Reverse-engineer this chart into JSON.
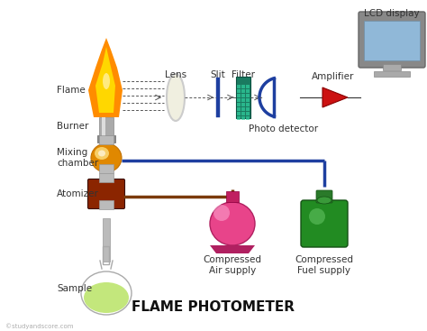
{
  "title": "FLAME PHOTOMETER",
  "title_fontsize": 11,
  "bg_color": "#ffffff",
  "watermark": "©studyandscore.com",
  "labels": {
    "flame": "Flame",
    "burner": "Burner",
    "mixing_chamber": "Mixing\nchamber",
    "atomizer": "Atomizer",
    "sample": "Sample",
    "lens": "Lens",
    "slit": "Slit",
    "filter": "Filter",
    "photo_detector": "Photo detector",
    "amplifier": "Amplifier",
    "lcd_display": "LCD display",
    "compressed_air": "Compressed\nAir supply",
    "compressed_fuel": "Compressed\nFuel supply"
  },
  "colors": {
    "flame_orange": "#FF8C00",
    "flame_yellow": "#FFD700",
    "burner_gray": "#A8A8A8",
    "burner_dark": "#707070",
    "mixing_orange": "#FFA500",
    "mixing_yellow": "#FFE060",
    "atomizer_brown": "#8B2500",
    "pipe_gray": "#AAAAAA",
    "lens_fill": "#F0EFE0",
    "lens_edge": "#CCCCCC",
    "slit_blue": "#1E3FA0",
    "filter_teal": "#1A8060",
    "filter_cyan": "#30D0A0",
    "photo_arc_blue": "#1E3FA0",
    "amplifier_red": "#CC1111",
    "lcd_frame": "#909090",
    "lcd_screen": "#90B8D8",
    "lcd_stand": "#C0C0C0",
    "dashed": "#555555",
    "blue_pipe": "#1E3FA0",
    "brown_pipe": "#7B3A0A",
    "flask_outline": "#BBBBBB",
    "flask_liquid": "#AADD44",
    "air_pink": "#E8448A",
    "air_dark": "#B03070",
    "fuel_green": "#228B22",
    "fuel_dark": "#1A5A1A",
    "label_color": "#333333"
  }
}
